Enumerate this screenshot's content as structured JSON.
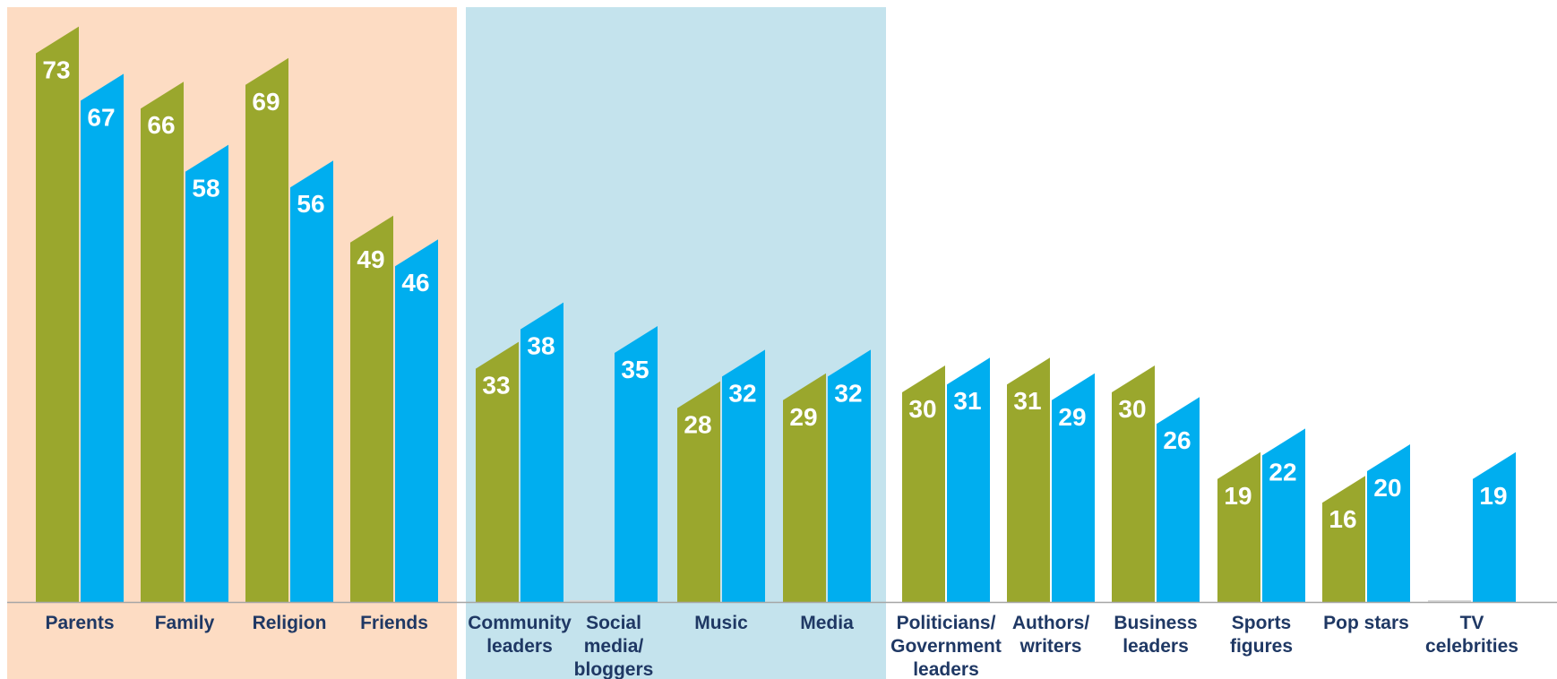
{
  "chart_data": {
    "type": "bar",
    "categories": [
      [
        "Parents"
      ],
      [
        "Family"
      ],
      [
        "Religion"
      ],
      [
        "Friends"
      ],
      [
        "Community",
        "leaders"
      ],
      [
        "Social",
        "media/",
        "bloggers"
      ],
      [
        "Music"
      ],
      [
        "Media"
      ],
      [
        "Politicians/",
        "Government",
        "leaders"
      ],
      [
        "Authors/",
        "writers"
      ],
      [
        "Business",
        "leaders"
      ],
      [
        "Sports",
        "figures"
      ],
      [
        "Pop stars"
      ],
      [
        "TV",
        "celebrities"
      ]
    ],
    "series": [
      {
        "color": "#9aa72d",
        "values": [
          73,
          66,
          69,
          49,
          33,
          null,
          28,
          29,
          30,
          31,
          30,
          19,
          16,
          null
        ]
      },
      {
        "color": "#00aeef",
        "values": [
          67,
          58,
          56,
          46,
          38,
          35,
          32,
          32,
          31,
          29,
          26,
          22,
          20,
          19
        ]
      }
    ],
    "ylim": [
      0,
      75
    ],
    "shaded_groups": [
      {
        "from": 0,
        "to": 3,
        "color": "#fddcc3"
      },
      {
        "from": 4,
        "to": 7,
        "color": "#c4e3ed"
      }
    ],
    "axis_line_color": "#a6a6a6"
  }
}
